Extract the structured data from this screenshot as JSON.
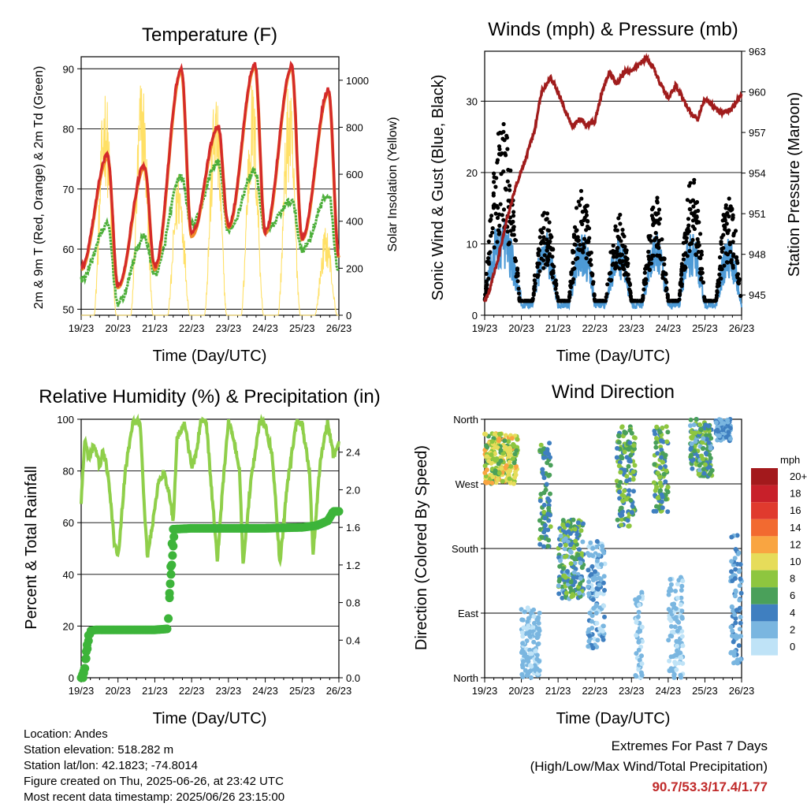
{
  "x_ticks": [
    "19/23",
    "20/23",
    "21/23",
    "22/23",
    "23/23",
    "24/23",
    "25/23",
    "26/23"
  ],
  "xlabel": "Time (Day/UTC)",
  "colors": {
    "red": "#d42a2a",
    "orange": "#f08a2a",
    "green": "#4caf3a",
    "yellow": "#ffe066",
    "maroon": "#a01c1c",
    "blue": "#4d9ad6",
    "black": "#000000",
    "rh": "#8fcf4a",
    "precip": "#3db43a",
    "extremes": "#c02a2a"
  },
  "temperature": {
    "title": "Temperature (F)",
    "ylabel_left": "2m & 9m T (Red, Orange) & 2m Td (Green)",
    "ylabel_right": "Solar Insolation (Yellow)",
    "left_ticks": [
      "50",
      "60",
      "70",
      "80",
      "90"
    ],
    "right_ticks": [
      "0",
      "200",
      "400",
      "600",
      "800",
      "1000"
    ]
  },
  "winds": {
    "title": "Winds (mph) & Pressure (mb)",
    "ylabel_left": "Sonic Wind & Gust (Blue, Black)",
    "ylabel_right": "Station Pressure (Maroon)",
    "left_ticks": [
      "0",
      "10",
      "20",
      "30"
    ],
    "right_ticks": [
      "945",
      "948",
      "951",
      "954",
      "957",
      "960",
      "963"
    ]
  },
  "humidity": {
    "title": "Relative Humidity (%) & Precipitation (in)",
    "ylabel_left": "Percent & Total Rainfall",
    "left_ticks": [
      "0",
      "20",
      "40",
      "60",
      "80",
      "100"
    ],
    "right_ticks": [
      "0.0",
      "0.4",
      "0.8",
      "1.2",
      "1.6",
      "2.0",
      "2.4"
    ]
  },
  "direction": {
    "title": "Wind Direction",
    "ylabel_left": "Direction (Colored By Speed)",
    "dir_ticks": [
      "North",
      "East",
      "South",
      "West",
      "North"
    ],
    "legend_title": "mph",
    "legend_labels": [
      "20+",
      "18",
      "16",
      "14",
      "12",
      "10",
      "8",
      "6",
      "4",
      "2",
      "0"
    ],
    "legend_colors": [
      "#a3191c",
      "#c8202a",
      "#e03a2e",
      "#f26a30",
      "#f9a541",
      "#e6dc5a",
      "#8ec63f",
      "#4aa05a",
      "#3f7fc0",
      "#7ab6e0",
      "#bfe3f7"
    ]
  },
  "footer": {
    "location": "Location: Andes",
    "elevation": "Station elevation: 518.282 m",
    "latlon": "Station lat/lon: 42.1823; -74.8014",
    "created": "Figure created on Thu, 2025-06-26, at 23:42 UTC",
    "recent": "Most recent data timestamp: 2025/06/26 23:15:00",
    "extremes_title": "Extremes For Past 7 Days",
    "extremes_sub": "(High/Low/Max Wind/Total Precipitation)",
    "extremes_values": "90.7/53.3/17.4/1.77"
  },
  "chart_data": [
    {
      "type": "line",
      "title": "Temperature (F)",
      "xlabel": "Time (Day/UTC)",
      "ylabel": "2m & 9m T (Red, Orange) & 2m Td (Green)",
      "y2label": "Solar Insolation (Yellow)",
      "xlim": [
        0,
        7
      ],
      "ylim": [
        49,
        92
      ],
      "y2lim": [
        0,
        1100
      ],
      "daily_max_T": [
        75.5,
        74,
        90,
        80.5,
        90.7,
        90.5,
        86.5
      ],
      "daily_min_T": [
        57,
        54,
        57,
        62.5,
        64,
        63,
        62,
        59
      ],
      "daily_max_Td": [
        64,
        62,
        72,
        74.5,
        73,
        68,
        69
      ],
      "daily_min_Td": [
        55,
        51,
        56,
        64,
        63,
        63,
        60,
        56
      ],
      "daily_max_solar": [
        1000,
        1050,
        640,
        980,
        1010,
        1000,
        380
      ],
      "series": [
        {
          "name": "2m T",
          "color": "red"
        },
        {
          "name": "9m T",
          "color": "orange"
        },
        {
          "name": "2m Td",
          "color": "green"
        },
        {
          "name": "Solar Insolation",
          "color": "yellow"
        }
      ]
    },
    {
      "type": "line",
      "title": "Winds (mph) & Pressure (mb)",
      "xlabel": "Time (Day/UTC)",
      "ylabel": "Sonic Wind & Gust (Blue, Black)",
      "y2label": "Station Pressure (Maroon)",
      "xlim": [
        0,
        7
      ],
      "ylim": [
        0,
        37
      ],
      "y2lim": [
        943.5,
        963
      ],
      "pressure_x": [
        0,
        0.15,
        0.35,
        0.6,
        0.85,
        1.1,
        1.35,
        1.55,
        1.8,
        2.0,
        2.2,
        2.4,
        2.6,
        2.8,
        3.0,
        3.2,
        3.4,
        3.6,
        3.8,
        4.0,
        4.2,
        4.4,
        4.6,
        4.8,
        5.0,
        5.2,
        5.4,
        5.6,
        5.8,
        6.0,
        6.2,
        6.4,
        6.6,
        6.8,
        7.0
      ],
      "pressure": [
        944.5,
        945.5,
        947.5,
        950.5,
        953,
        955,
        957,
        960,
        961,
        960,
        958.5,
        957.5,
        958,
        957.5,
        957.8,
        960,
        961.5,
        960.5,
        961.5,
        961.5,
        962,
        962.5,
        961.8,
        960.5,
        959.5,
        960.5,
        959.5,
        958.5,
        958,
        959.5,
        959,
        958.5,
        958.5,
        959,
        959.8
      ],
      "wind_daily_peak": [
        16,
        10,
        10,
        9,
        10,
        10,
        9
      ],
      "gust_daily_peak": [
        28,
        15,
        19,
        15,
        17,
        20,
        17
      ],
      "series": [
        {
          "name": "Sonic Wind",
          "color": "blue"
        },
        {
          "name": "Gust",
          "color": "black"
        },
        {
          "name": "Station Pressure",
          "color": "maroon"
        }
      ]
    },
    {
      "type": "line",
      "title": "Relative Humidity (%) & Precipitation (in)",
      "xlabel": "Time (Day/UTC)",
      "ylabel": "Percent & Total Rainfall",
      "xlim": [
        0,
        7
      ],
      "ylim": [
        0,
        100
      ],
      "y2lim": [
        0,
        2.75
      ],
      "rh_x": [
        0,
        0.1,
        0.2,
        0.35,
        0.5,
        0.6,
        0.75,
        0.9,
        1.0,
        1.2,
        1.4,
        1.6,
        1.7,
        1.8,
        2.0,
        2.1,
        2.25,
        2.4,
        2.5,
        2.6,
        2.8,
        3.0,
        3.1,
        3.25,
        3.4,
        3.5,
        3.7,
        3.85,
        4.0,
        4.1,
        4.3,
        4.4,
        4.6,
        4.85,
        5.0,
        5.2,
        5.4,
        5.6,
        5.85,
        6.0,
        6.2,
        6.3,
        6.5,
        6.7,
        6.85,
        7.0
      ],
      "rh": [
        68,
        93,
        85,
        90,
        82,
        88,
        77,
        52,
        46,
        80,
        99,
        99,
        70,
        47,
        65,
        75,
        80,
        70,
        60,
        92,
        99,
        82,
        85,
        99,
        99,
        80,
        45,
        75,
        99,
        95,
        80,
        44,
        75,
        99,
        98,
        85,
        44,
        75,
        99,
        98,
        80,
        48,
        85,
        99,
        86,
        90
      ],
      "precip_x": [
        0,
        0.1,
        0.18,
        0.25,
        0.4,
        1.0,
        2.0,
        2.35,
        2.4,
        2.45,
        2.5,
        3.0,
        4.0,
        5.0,
        6.0,
        6.4,
        6.7,
        6.85,
        7.0
      ],
      "precip": [
        0.0,
        0.1,
        0.35,
        0.5,
        0.51,
        0.51,
        0.51,
        0.52,
        0.85,
        1.35,
        1.58,
        1.59,
        1.59,
        1.59,
        1.6,
        1.62,
        1.67,
        1.77,
        1.77
      ],
      "series": [
        {
          "name": "Relative Humidity",
          "color": "rh"
        },
        {
          "name": "Total Rainfall",
          "color": "precip"
        }
      ]
    },
    {
      "type": "scatter",
      "title": "Wind Direction",
      "xlabel": "Time (Day/UTC)",
      "ylabel": "Direction (Colored By Speed)",
      "xlim": [
        0,
        7
      ],
      "ylim": [
        0,
        360
      ],
      "categories": [
        "North",
        "East",
        "South",
        "West",
        "North"
      ],
      "clusters": [
        {
          "x": [
            0.0,
            0.9
          ],
          "dir": [
            270,
            340
          ],
          "speed": [
            6,
            12
          ]
        },
        {
          "x": [
            1.0,
            1.5
          ],
          "dir": [
            0,
            100
          ],
          "speed": [
            0,
            3
          ]
        },
        {
          "x": [
            1.5,
            1.8
          ],
          "dir": [
            180,
            330
          ],
          "speed": [
            3,
            8
          ]
        },
        {
          "x": [
            2.0,
            2.7
          ],
          "dir": [
            110,
            220
          ],
          "speed": [
            2,
            9
          ]
        },
        {
          "x": [
            2.8,
            3.3
          ],
          "dir": [
            40,
            190
          ],
          "speed": [
            0,
            4
          ]
        },
        {
          "x": [
            3.6,
            4.1
          ],
          "dir": [
            210,
            350
          ],
          "speed": [
            3,
            9
          ]
        },
        {
          "x": [
            4.1,
            4.3
          ],
          "dir": [
            0,
            120
          ],
          "speed": [
            0,
            3
          ]
        },
        {
          "x": [
            4.6,
            5.0
          ],
          "dir": [
            230,
            350
          ],
          "speed": [
            3,
            9
          ]
        },
        {
          "x": [
            5.0,
            5.4
          ],
          "dir": [
            0,
            140
          ],
          "speed": [
            0,
            3
          ]
        },
        {
          "x": [
            5.6,
            6.2
          ],
          "dir": [
            280,
            360
          ],
          "speed": [
            2,
            9
          ]
        },
        {
          "x": [
            6.3,
            6.7
          ],
          "dir": [
            330,
            360
          ],
          "speed": [
            1,
            4
          ]
        },
        {
          "x": [
            6.7,
            7.0
          ],
          "dir": [
            20,
            200
          ],
          "speed": [
            1,
            5
          ]
        }
      ]
    }
  ]
}
